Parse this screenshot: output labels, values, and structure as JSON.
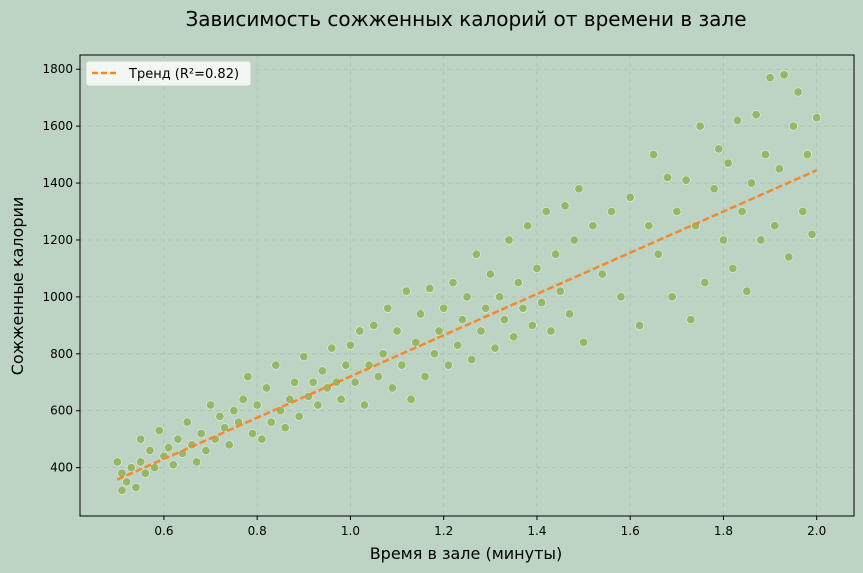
{
  "colors": {
    "background": "#bdd4c4",
    "plot_background": "#bdd4c4",
    "points": "#8aac4a",
    "trend": "#f08a2f",
    "grid": "#a9bfb0"
  },
  "chart_data": {
    "type": "scatter",
    "title": "Зависимость сожженных калорий от времени в зале",
    "xlabel": "Время в зале (минуты)",
    "ylabel": "Сожженные калории",
    "xlim": [
      0.42,
      2.08
    ],
    "ylim": [
      230,
      1850
    ],
    "xticks": [
      0.6,
      0.8,
      1.0,
      1.2,
      1.4,
      1.6,
      1.8,
      2.0
    ],
    "xtick_labels": [
      "0.6",
      "0.8",
      "1.0",
      "1.2",
      "1.4",
      "1.6",
      "1.8",
      "2.0"
    ],
    "yticks": [
      400,
      600,
      800,
      1000,
      1200,
      1400,
      1600,
      1800
    ],
    "ytick_labels": [
      "400",
      "600",
      "800",
      "1000",
      "1200",
      "1400",
      "1600",
      "1800"
    ],
    "grid": true,
    "legend": {
      "position": "top-left",
      "entries": [
        "Тренд (R²=0.82)"
      ]
    },
    "trend": {
      "name": "Тренд (R²=0.82)",
      "x": [
        0.5,
        2.0
      ],
      "y": [
        358,
        1445
      ]
    },
    "points": [
      [
        0.5,
        420
      ],
      [
        0.51,
        380
      ],
      [
        0.51,
        320
      ],
      [
        0.52,
        350
      ],
      [
        0.53,
        400
      ],
      [
        0.54,
        330
      ],
      [
        0.55,
        500
      ],
      [
        0.55,
        420
      ],
      [
        0.56,
        380
      ],
      [
        0.57,
        460
      ],
      [
        0.58,
        400
      ],
      [
        0.59,
        530
      ],
      [
        0.6,
        440
      ],
      [
        0.61,
        470
      ],
      [
        0.62,
        410
      ],
      [
        0.63,
        500
      ],
      [
        0.64,
        450
      ],
      [
        0.65,
        560
      ],
      [
        0.66,
        480
      ],
      [
        0.67,
        420
      ],
      [
        0.68,
        520
      ],
      [
        0.69,
        460
      ],
      [
        0.7,
        620
      ],
      [
        0.71,
        500
      ],
      [
        0.72,
        580
      ],
      [
        0.73,
        540
      ],
      [
        0.74,
        480
      ],
      [
        0.75,
        600
      ],
      [
        0.76,
        560
      ],
      [
        0.77,
        640
      ],
      [
        0.78,
        720
      ],
      [
        0.79,
        520
      ],
      [
        0.8,
        620
      ],
      [
        0.81,
        500
      ],
      [
        0.82,
        680
      ],
      [
        0.83,
        560
      ],
      [
        0.84,
        760
      ],
      [
        0.85,
        600
      ],
      [
        0.86,
        540
      ],
      [
        0.87,
        640
      ],
      [
        0.88,
        700
      ],
      [
        0.89,
        580
      ],
      [
        0.9,
        790
      ],
      [
        0.91,
        650
      ],
      [
        0.92,
        700
      ],
      [
        0.93,
        620
      ],
      [
        0.94,
        740
      ],
      [
        0.95,
        680
      ],
      [
        0.96,
        820
      ],
      [
        0.97,
        700
      ],
      [
        0.98,
        640
      ],
      [
        0.99,
        760
      ],
      [
        1.0,
        830
      ],
      [
        1.01,
        700
      ],
      [
        1.02,
        880
      ],
      [
        1.03,
        620
      ],
      [
        1.04,
        760
      ],
      [
        1.05,
        900
      ],
      [
        1.06,
        720
      ],
      [
        1.07,
        800
      ],
      [
        1.08,
        960
      ],
      [
        1.09,
        680
      ],
      [
        1.1,
        880
      ],
      [
        1.11,
        760
      ],
      [
        1.12,
        1020
      ],
      [
        1.13,
        640
      ],
      [
        1.14,
        840
      ],
      [
        1.15,
        940
      ],
      [
        1.16,
        720
      ],
      [
        1.17,
        1030
      ],
      [
        1.18,
        800
      ],
      [
        1.19,
        880
      ],
      [
        1.2,
        960
      ],
      [
        1.21,
        760
      ],
      [
        1.22,
        1050
      ],
      [
        1.23,
        830
      ],
      [
        1.24,
        920
      ],
      [
        1.25,
        1000
      ],
      [
        1.26,
        780
      ],
      [
        1.27,
        1150
      ],
      [
        1.28,
        880
      ],
      [
        1.29,
        960
      ],
      [
        1.3,
        1080
      ],
      [
        1.31,
        820
      ],
      [
        1.32,
        1000
      ],
      [
        1.33,
        920
      ],
      [
        1.34,
        1200
      ],
      [
        1.35,
        860
      ],
      [
        1.36,
        1050
      ],
      [
        1.37,
        960
      ],
      [
        1.38,
        1250
      ],
      [
        1.39,
        900
      ],
      [
        1.4,
        1100
      ],
      [
        1.41,
        980
      ],
      [
        1.42,
        1300
      ],
      [
        1.43,
        880
      ],
      [
        1.44,
        1150
      ],
      [
        1.45,
        1020
      ],
      [
        1.46,
        1320
      ],
      [
        1.47,
        940
      ],
      [
        1.48,
        1200
      ],
      [
        1.49,
        1380
      ],
      [
        1.5,
        840
      ],
      [
        1.52,
        1250
      ],
      [
        1.54,
        1080
      ],
      [
        1.56,
        1300
      ],
      [
        1.58,
        1000
      ],
      [
        1.6,
        1350
      ],
      [
        1.62,
        900
      ],
      [
        1.64,
        1250
      ],
      [
        1.65,
        1500
      ],
      [
        1.66,
        1150
      ],
      [
        1.68,
        1420
      ],
      [
        1.69,
        1000
      ],
      [
        1.7,
        1300
      ],
      [
        1.72,
        1410
      ],
      [
        1.73,
        920
      ],
      [
        1.74,
        1250
      ],
      [
        1.75,
        1600
      ],
      [
        1.76,
        1050
      ],
      [
        1.78,
        1380
      ],
      [
        1.79,
        1520
      ],
      [
        1.8,
        1200
      ],
      [
        1.81,
        1470
      ],
      [
        1.82,
        1100
      ],
      [
        1.83,
        1620
      ],
      [
        1.84,
        1300
      ],
      [
        1.85,
        1020
      ],
      [
        1.86,
        1400
      ],
      [
        1.87,
        1640
      ],
      [
        1.88,
        1200
      ],
      [
        1.89,
        1500
      ],
      [
        1.9,
        1770
      ],
      [
        1.91,
        1250
      ],
      [
        1.92,
        1450
      ],
      [
        1.93,
        1780
      ],
      [
        1.94,
        1140
      ],
      [
        1.95,
        1600
      ],
      [
        1.96,
        1720
      ],
      [
        1.97,
        1300
      ],
      [
        1.98,
        1500
      ],
      [
        1.99,
        1220
      ],
      [
        2.0,
        1630
      ]
    ]
  }
}
